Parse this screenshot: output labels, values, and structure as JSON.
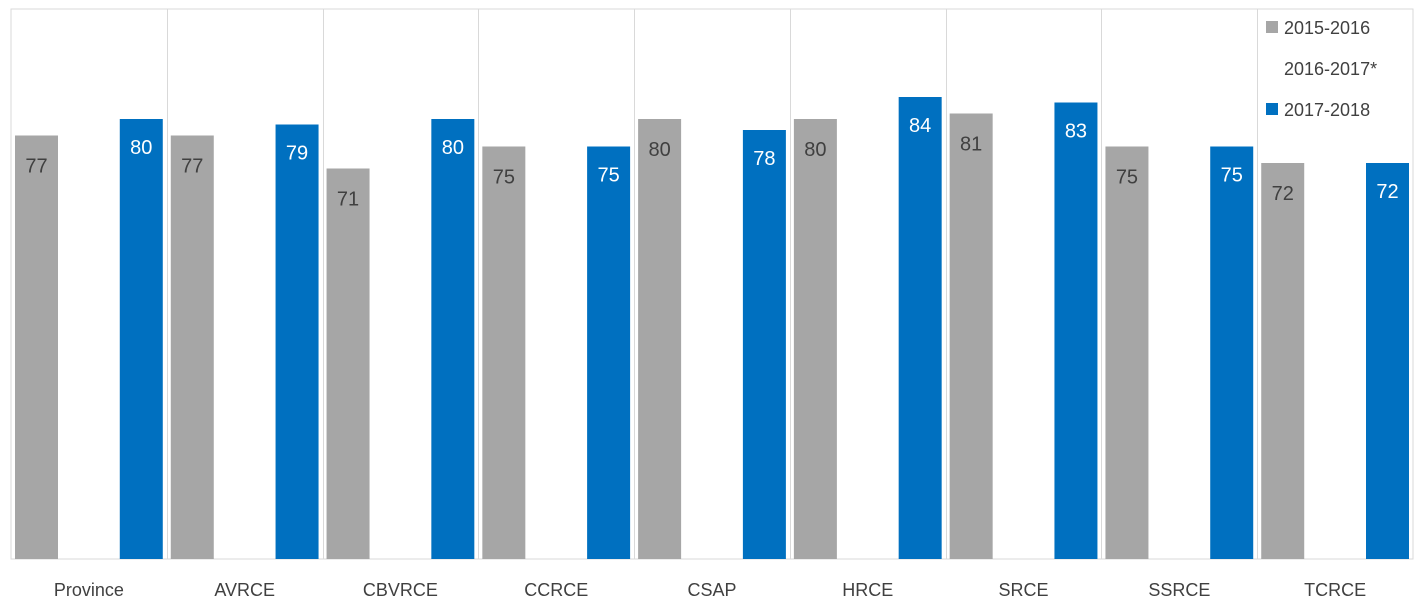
{
  "chart_data": {
    "type": "bar",
    "title": "",
    "xlabel": "",
    "ylabel": "",
    "categories": [
      "Province",
      "AVRCE",
      "CBVRCE",
      "CCRCE",
      "CSAP",
      "HRCE",
      "SRCE",
      "SSRCE",
      "TCRCE"
    ],
    "series": [
      {
        "name": "2015-2016",
        "color": "#A6A6A6",
        "label_color": "#404040",
        "values": [
          77,
          77,
          71,
          75,
          80,
          80,
          81,
          75,
          72
        ]
      },
      {
        "name": "2016-2017*",
        "color": "#FFFFFF",
        "label_color": "#404040",
        "values": [
          null,
          null,
          null,
          null,
          null,
          null,
          null,
          null,
          null
        ]
      },
      {
        "name": "2017-2018",
        "color": "#0070C0",
        "label_color": "#FFFFFF",
        "values": [
          80,
          79,
          80,
          75,
          78,
          84,
          83,
          75,
          72
        ]
      }
    ],
    "ylim": [
      0,
      100
    ],
    "grid": false,
    "category_separators": true,
    "legend_position": "top-right"
  }
}
